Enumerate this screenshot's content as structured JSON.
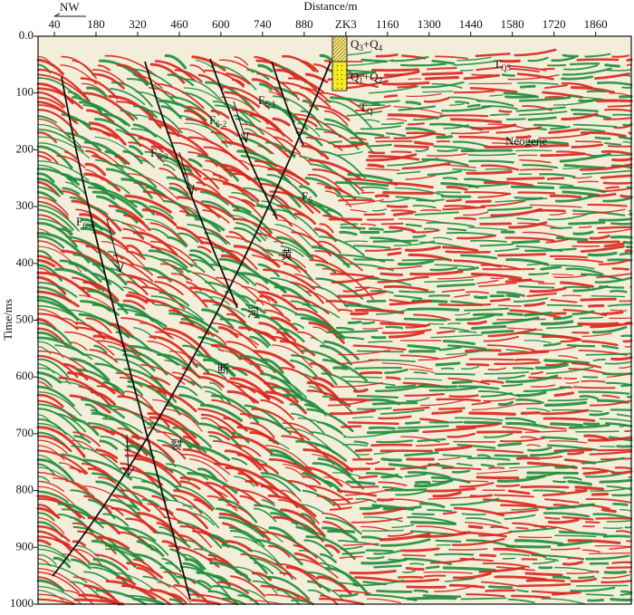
{
  "chart_data": {
    "type": "seismic",
    "x_label": "Distance/m",
    "y_label": "Time/ms",
    "direction": "NW",
    "xlim": [
      -15,
      1980
    ],
    "xticks": [
      40,
      180,
      320,
      460,
      600,
      740,
      880,
      {
        "value": 1020,
        "label": "ZK3"
      },
      1160,
      1300,
      1440,
      1580,
      1720,
      1860
    ],
    "ylim": [
      0,
      1000
    ],
    "yticks": [
      {
        "value": 0,
        "label": "0.0"
      },
      100,
      200,
      300,
      400,
      500,
      600,
      700,
      800,
      900,
      1000
    ],
    "annotations": [
      [
        "Q",
        "3",
        "+Q",
        "4"
      ],
      [
        "Q",
        "1",
        "+Q",
        "2"
      ],
      [
        "T",
        "Q3"
      ],
      [
        "T",
        "Q"
      ],
      [
        "Neogene"
      ],
      [
        "F",
        "6-1"
      ],
      [
        "F",
        "6-2"
      ],
      [
        "F",
        "6-3"
      ],
      [
        "F",
        "6-4"
      ],
      [
        "F",
        "6"
      ],
      [
        "黄"
      ],
      [
        "河"
      ],
      [
        "断"
      ],
      [
        "裂"
      ]
    ],
    "colors": {
      "peak": "#d8261c",
      "trough": "#1e8c3a",
      "background": "#f3eeda"
    }
  }
}
